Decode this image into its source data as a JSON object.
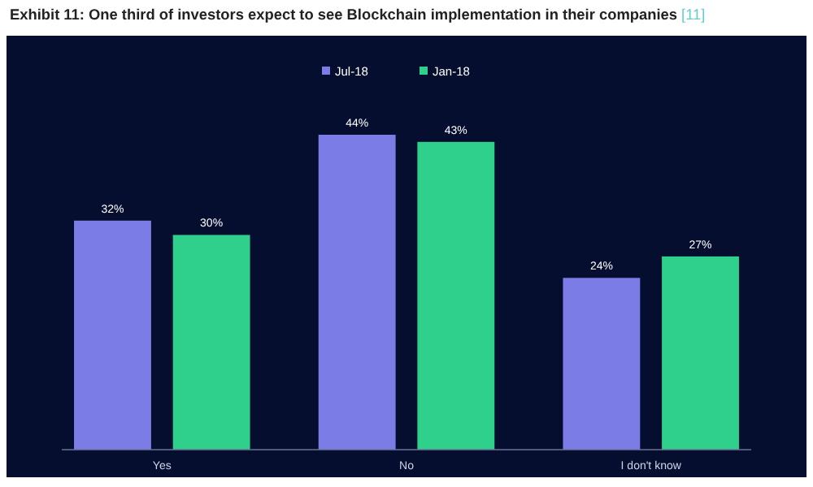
{
  "chart_data": {
    "type": "bar",
    "title": "Exhibit 11: One third of investors expect to see Blockchain implementation in their companies",
    "annotations": [
      "[11]"
    ],
    "categories": [
      "Yes",
      "No",
      "I don't know"
    ],
    "series": [
      {
        "name": "Jul-18",
        "color": "#7b7ce6",
        "values": [
          32,
          44,
          24
        ],
        "value_labels": [
          "32%",
          "44%",
          "24%"
        ]
      },
      {
        "name": "Jan-18",
        "color": "#2fcf8c",
        "values": [
          30,
          43,
          27
        ],
        "value_labels": [
          "30%",
          "43%",
          "27%"
        ]
      }
    ],
    "legend": "top"
  }
}
